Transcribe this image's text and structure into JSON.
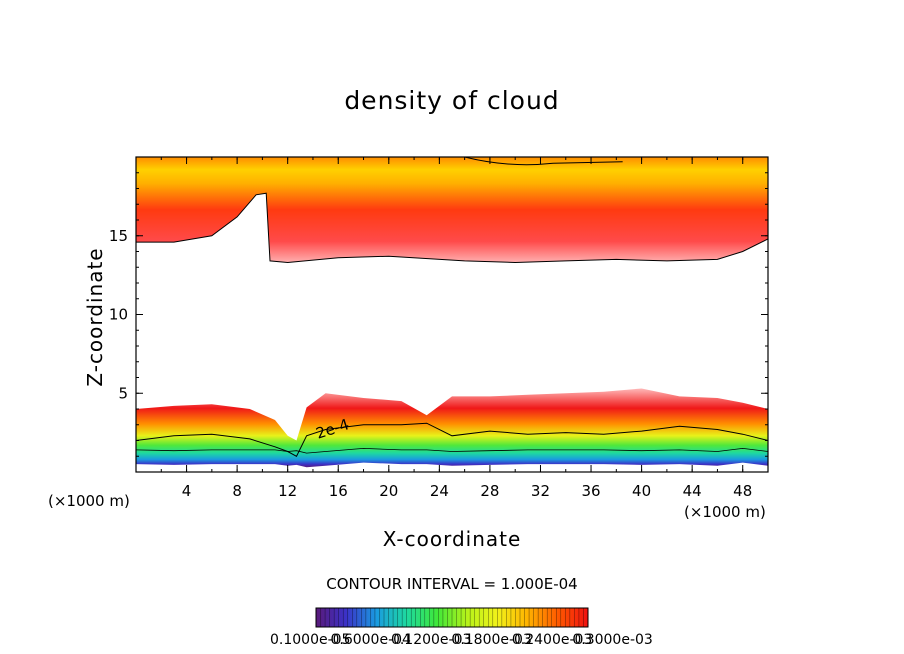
{
  "chart_data": {
    "type": "heatmap",
    "title": "density of cloud",
    "xlabel": "X-coordinate",
    "ylabel": "Z-coordinate",
    "x_unit": "(×1000 m)",
    "y_unit": "(×1000 m)",
    "xlim": [
      0,
      50
    ],
    "ylim": [
      0,
      20
    ],
    "x_ticks": [
      4,
      8,
      12,
      16,
      20,
      24,
      28,
      32,
      36,
      40,
      44,
      48
    ],
    "y_ticks": [
      5,
      10,
      15
    ],
    "contour_label": "2e-4",
    "contour_interval_text": "CONTOUR INTERVAL = 1.000E-04",
    "colorbar_labels": [
      "0.1000e-05",
      "0.6000e-04",
      "0.1200e-03",
      "0.1800e-03",
      "0.2400e-03",
      "0.3000e-03"
    ],
    "colormap": [
      "#5a1a7a",
      "#3b32c8",
      "#1a9be0",
      "#1ed9a0",
      "#3fe83a",
      "#b6f21a",
      "#f2f21a",
      "#ffb300",
      "#ff5a00",
      "#f01010"
    ],
    "upper_cloud": {
      "x": [
        0,
        3,
        6,
        8,
        9.5,
        10.3,
        10.6,
        12,
        16,
        20,
        26,
        30,
        34,
        38,
        42,
        46,
        48,
        50
      ],
      "bottom_z": [
        14.6,
        14.6,
        15.0,
        16.2,
        17.6,
        17.7,
        13.4,
        13.3,
        13.6,
        13.7,
        13.4,
        13.3,
        13.4,
        13.5,
        13.4,
        13.5,
        14.0,
        14.8
      ],
      "top_z": 20
    },
    "lower_cloud": {
      "x": [
        0,
        3,
        6,
        9,
        11,
        12,
        12.7,
        13.5,
        15,
        18,
        21,
        23,
        25,
        28,
        31,
        34,
        37,
        40,
        43,
        46,
        48,
        50
      ],
      "top_z": [
        4.0,
        4.2,
        4.3,
        4.0,
        3.3,
        2.3,
        2.0,
        4.1,
        5.0,
        4.7,
        4.5,
        3.6,
        4.8,
        4.8,
        4.9,
        5.0,
        5.1,
        5.3,
        4.8,
        4.7,
        4.4,
        4.0
      ],
      "contour_2e4_z": [
        2.0,
        2.3,
        2.4,
        2.1,
        1.6,
        1.3,
        1.0,
        2.3,
        2.7,
        3.0,
        3.0,
        3.1,
        2.3,
        2.6,
        2.4,
        2.5,
        2.4,
        2.6,
        2.9,
        2.7,
        2.4,
        2.0
      ],
      "bottom_z": [
        0.5,
        0.45,
        0.5,
        0.5,
        0.5,
        0.4,
        0.45,
        0.3,
        0.4,
        0.6,
        0.5,
        0.5,
        0.4,
        0.45,
        0.5,
        0.5,
        0.5,
        0.45,
        0.5,
        0.4,
        0.6,
        0.4
      ]
    }
  }
}
